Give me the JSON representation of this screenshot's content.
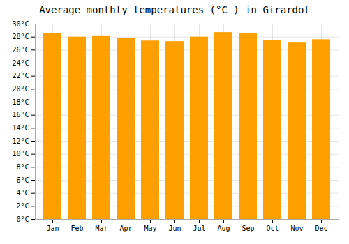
{
  "chart_data": {
    "type": "bar",
    "title": "Average monthly temperatures (°C ) in Girardot",
    "categories": [
      "Jan",
      "Feb",
      "Mar",
      "Apr",
      "May",
      "Jun",
      "Jul",
      "Aug",
      "Sep",
      "Oct",
      "Nov",
      "Dec"
    ],
    "values": [
      28.5,
      28.0,
      28.2,
      27.8,
      27.4,
      27.3,
      28.0,
      28.7,
      28.5,
      27.5,
      27.2,
      27.6
    ],
    "color": "#FFA000",
    "ylim": [
      0,
      30
    ],
    "yticks": [
      {
        "value": 0,
        "label": "0°C"
      },
      {
        "value": 2,
        "label": "2°C"
      },
      {
        "value": 4,
        "label": "4°C"
      },
      {
        "value": 6,
        "label": "6°C"
      },
      {
        "value": 8,
        "label": "8°C"
      },
      {
        "value": 10,
        "label": "10°C"
      },
      {
        "value": 12,
        "label": "12°C"
      },
      {
        "value": 14,
        "label": "14°C"
      },
      {
        "value": 16,
        "label": "16°C"
      },
      {
        "value": 18,
        "label": "18°C"
      },
      {
        "value": 20,
        "label": "20°C"
      },
      {
        "value": 22,
        "label": "22°C"
      },
      {
        "value": 24,
        "label": "24°C"
      },
      {
        "value": 26,
        "label": "26°C"
      },
      {
        "value": 28,
        "label": "28°C"
      },
      {
        "value": 30,
        "label": "30°C"
      }
    ],
    "grid": true
  }
}
